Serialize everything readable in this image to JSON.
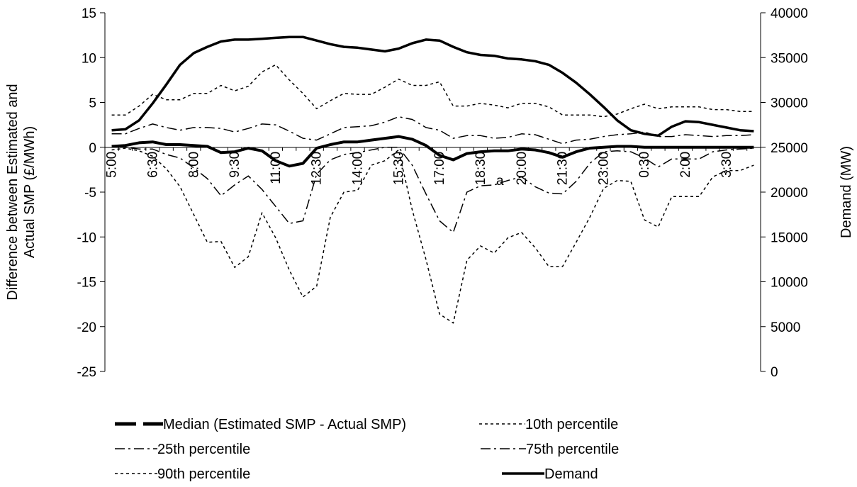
{
  "chart_data": {
    "type": "line",
    "title": "",
    "left_axis": {
      "label_line1": "Difference between Estimated and",
      "label_line2": "Actual SMP (£/MWh)",
      "ylim": [
        -25,
        15
      ],
      "ticks": [
        15,
        10,
        5,
        0,
        -5,
        -10,
        -15,
        -20,
        -25
      ]
    },
    "right_axis": {
      "label": "Demand (MW)",
      "ylim": [
        0,
        40000
      ],
      "ticks": [
        40000,
        35000,
        30000,
        25000,
        20000,
        15000,
        10000,
        5000,
        0
      ]
    },
    "x_tick_labels": [
      "5:00",
      "6:30",
      "8:00",
      "9:30",
      "11:00",
      "12:30",
      "14:00",
      "15:30",
      "17:00",
      "18:30",
      "20:00",
      "21:30",
      "23:00",
      "0:30",
      "2:00",
      "3:30"
    ],
    "x_tick_step": 3,
    "n_points": 48,
    "annotation": "a",
    "grid": false,
    "legend_position": "bottom",
    "series": [
      {
        "name": "Median (Estimated SMP - Actual SMP)",
        "axis": "left",
        "style": "median",
        "values": [
          0.1,
          0.2,
          0.5,
          0.6,
          0.3,
          0.3,
          0.2,
          0.1,
          -0.6,
          -0.5,
          -0.1,
          -0.4,
          -1.5,
          -2.1,
          -1.8,
          -0.1,
          0.3,
          0.6,
          0.6,
          0.8,
          1.0,
          1.2,
          0.9,
          0.2,
          -0.9,
          -1.4,
          -0.7,
          -0.5,
          -0.4,
          -0.4,
          -0.2,
          -0.3,
          -0.6,
          -1.1,
          -0.5,
          -0.1,
          0.0,
          0.1,
          0.1,
          0.0,
          0.0,
          0.0,
          0.0,
          0.0,
          0.0,
          0.0,
          0.0,
          0.0
        ]
      },
      {
        "name": "10th percentile",
        "axis": "left",
        "style": "p10",
        "values": [
          -0.3,
          -0.1,
          -0.4,
          -1.0,
          -2.4,
          -4.4,
          -7.5,
          -10.6,
          -10.5,
          -13.4,
          -12.2,
          -7.3,
          -10.1,
          -13.7,
          -16.7,
          -15.5,
          -7.8,
          -5.0,
          -4.8,
          -2.0,
          -1.5,
          -0.3,
          -7.0,
          -12.5,
          -18.6,
          -19.6,
          -12.6,
          -11.0,
          -11.8,
          -10.1,
          -9.5,
          -11.2,
          -13.3,
          -13.3,
          -10.6,
          -7.8,
          -4.6,
          -3.7,
          -3.8,
          -8.1,
          -8.9,
          -5.5,
          -5.5,
          -5.5,
          -3.3,
          -2.6,
          -2.6,
          -2.0
        ]
      },
      {
        "name": "25th percentile",
        "axis": "left",
        "style": "p25",
        "values": [
          0.0,
          0.0,
          -0.2,
          -0.2,
          -0.8,
          -1.2,
          -2.3,
          -3.5,
          -5.4,
          -4.2,
          -3.2,
          -4.7,
          -6.6,
          -8.5,
          -8.2,
          -3.0,
          -1.4,
          -0.8,
          -0.6,
          -0.3,
          0.0,
          0.0,
          -2.0,
          -5.2,
          -8.2,
          -9.5,
          -5.0,
          -4.3,
          -4.2,
          -3.7,
          -3.3,
          -4.4,
          -5.1,
          -5.2,
          -3.8,
          -1.8,
          -0.5,
          -0.4,
          -0.5,
          -1.2,
          -2.2,
          -1.3,
          -1.3,
          -1.3,
          -0.5,
          -0.3,
          -0.2,
          -0.1
        ]
      },
      {
        "name": "75th percentile",
        "axis": "left",
        "style": "p75",
        "values": [
          1.5,
          1.5,
          2.1,
          2.6,
          2.2,
          1.9,
          2.2,
          2.2,
          2.1,
          1.7,
          2.1,
          2.6,
          2.5,
          1.8,
          1.0,
          0.8,
          1.5,
          2.2,
          2.3,
          2.4,
          2.8,
          3.4,
          3.1,
          2.2,
          1.9,
          1.0,
          1.3,
          1.3,
          1.0,
          1.1,
          1.5,
          1.4,
          0.9,
          0.4,
          0.8,
          0.9,
          1.2,
          1.4,
          1.5,
          1.7,
          1.2,
          1.2,
          1.4,
          1.3,
          1.2,
          1.3,
          1.3,
          1.4
        ]
      },
      {
        "name": "90th percentile",
        "axis": "left",
        "style": "p90",
        "values": [
          3.6,
          3.6,
          4.6,
          5.9,
          5.3,
          5.3,
          6.0,
          6.0,
          6.9,
          6.3,
          6.8,
          8.4,
          9.2,
          7.5,
          6.0,
          4.3,
          5.2,
          6.0,
          5.9,
          5.9,
          6.7,
          7.6,
          6.9,
          6.9,
          7.3,
          4.6,
          4.6,
          4.9,
          4.7,
          4.4,
          4.9,
          4.9,
          4.5,
          3.6,
          3.6,
          3.6,
          3.4,
          3.7,
          4.3,
          4.8,
          4.3,
          4.5,
          4.5,
          4.5,
          4.2,
          4.2,
          4.0,
          4.0
        ]
      },
      {
        "name": "Demand",
        "axis": "right",
        "style": "demand",
        "values": [
          26900,
          27000,
          28000,
          29900,
          32000,
          34200,
          35500,
          36200,
          36800,
          37000,
          37000,
          37100,
          37200,
          37300,
          37300,
          36900,
          36500,
          36200,
          36100,
          35900,
          35700,
          36000,
          36600,
          37000,
          36900,
          36200,
          35600,
          35300,
          35200,
          34900,
          34800,
          34600,
          34200,
          33300,
          32200,
          30900,
          29500,
          28000,
          26900,
          26500,
          26300,
          27300,
          27900,
          27800,
          27500,
          27200,
          26900,
          26800
        ]
      }
    ]
  }
}
